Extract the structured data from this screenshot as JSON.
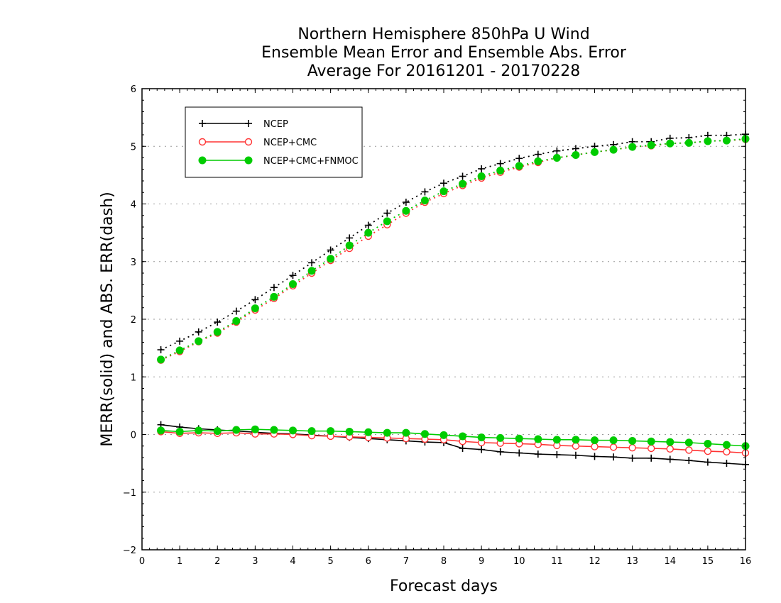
{
  "chart_data": {
    "type": "line",
    "title": [
      "Northern Hemisphere 850hPa U Wind",
      "Ensemble Mean Error and Ensemble Abs. Error",
      "Average For 20161201 - 20170228"
    ],
    "xlabel": "Forecast days",
    "ylabel": "MERR(solid) and ABS. ERR(dash)",
    "xlim": [
      0,
      16
    ],
    "ylim": [
      -2,
      6
    ],
    "xticks": [
      "0",
      "1",
      "2",
      "3",
      "4",
      "5",
      "6",
      "7",
      "8",
      "9",
      "10",
      "11",
      "12",
      "13",
      "14",
      "15",
      "16"
    ],
    "yticks": [
      "−2",
      "−1",
      "0",
      "1",
      "2",
      "3",
      "4",
      "5",
      "6"
    ],
    "grid": "horizontal-dotted",
    "legend_position": "top-left",
    "x": [
      0.5,
      1,
      1.5,
      2,
      2.5,
      3,
      3.5,
      4,
      4.5,
      5,
      5.5,
      6,
      6.5,
      7,
      7.5,
      8,
      8.5,
      9,
      9.5,
      10,
      10.5,
      11,
      11.5,
      12,
      12.5,
      13,
      13.5,
      14,
      14.5,
      15,
      15.5,
      16
    ],
    "series": [
      {
        "name": "NCEP",
        "color": "#000000",
        "marker": "plus",
        "merr": [
          0.17,
          0.13,
          0.1,
          0.08,
          0.06,
          0.04,
          0.02,
          0.01,
          -0.01,
          -0.03,
          -0.05,
          -0.07,
          -0.09,
          -0.11,
          -0.13,
          -0.14,
          -0.24,
          -0.26,
          -0.3,
          -0.32,
          -0.34,
          -0.35,
          -0.36,
          -0.38,
          -0.39,
          -0.41,
          -0.41,
          -0.43,
          -0.45,
          -0.48,
          -0.5,
          -0.52
        ],
        "abs_err": [
          1.47,
          1.62,
          1.78,
          1.95,
          2.14,
          2.34,
          2.55,
          2.76,
          2.98,
          3.2,
          3.41,
          3.63,
          3.84,
          4.03,
          4.21,
          4.36,
          4.48,
          4.61,
          4.7,
          4.79,
          4.86,
          4.92,
          4.96,
          5.0,
          5.03,
          5.08,
          5.08,
          5.14,
          5.15,
          5.19,
          5.19,
          5.21
        ]
      },
      {
        "name": "NCEP+CMC",
        "color": "#ff3333",
        "marker": "open-circle",
        "merr": [
          0.05,
          0.02,
          0.03,
          0.02,
          0.03,
          0.01,
          0.01,
          0.0,
          -0.02,
          -0.03,
          -0.04,
          -0.05,
          -0.06,
          -0.07,
          -0.08,
          -0.09,
          -0.12,
          -0.14,
          -0.15,
          -0.16,
          -0.17,
          -0.19,
          -0.2,
          -0.21,
          -0.22,
          -0.23,
          -0.24,
          -0.25,
          -0.27,
          -0.29,
          -0.3,
          -0.32
        ],
        "abs_err": [
          1.29,
          1.44,
          1.61,
          1.76,
          1.95,
          2.16,
          2.36,
          2.58,
          2.8,
          3.02,
          3.23,
          3.44,
          3.64,
          3.84,
          4.03,
          4.18,
          4.32,
          4.45,
          4.55,
          4.64,
          4.72,
          4.8,
          4.85,
          4.9,
          4.94,
          4.99,
          5.01,
          5.05,
          5.06,
          5.09,
          5.1,
          5.12
        ]
      },
      {
        "name": "NCEP+CMC+FNMOC",
        "color": "#00cc00",
        "marker": "filled-circle",
        "merr": [
          0.07,
          0.05,
          0.07,
          0.06,
          0.08,
          0.09,
          0.08,
          0.07,
          0.06,
          0.06,
          0.05,
          0.04,
          0.03,
          0.03,
          0.01,
          -0.01,
          -0.03,
          -0.05,
          -0.06,
          -0.07,
          -0.08,
          -0.09,
          -0.09,
          -0.1,
          -0.1,
          -0.11,
          -0.12,
          -0.13,
          -0.14,
          -0.16,
          -0.18,
          -0.2
        ],
        "abs_err": [
          1.3,
          1.46,
          1.62,
          1.78,
          1.97,
          2.19,
          2.39,
          2.61,
          2.84,
          3.05,
          3.28,
          3.5,
          3.7,
          3.88,
          4.06,
          4.22,
          4.35,
          4.48,
          4.58,
          4.66,
          4.74,
          4.8,
          4.85,
          4.9,
          4.94,
          4.99,
          5.02,
          5.05,
          5.06,
          5.09,
          5.1,
          5.13
        ]
      }
    ]
  }
}
